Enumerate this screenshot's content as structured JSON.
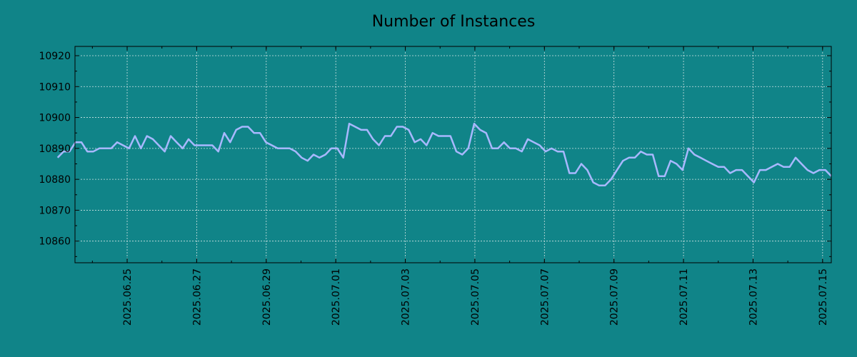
{
  "chart_data": {
    "type": "line",
    "title": "Number of Instances",
    "xlabel": "",
    "ylabel": "",
    "x_start": "2025-06-23",
    "x_end": "2025-07-15",
    "xlim": [
      "2025-06-23 12:00",
      "2025-07-15 06:00"
    ],
    "ylim": [
      10853,
      10923
    ],
    "xticks": [
      "2025.06.25",
      "2025.06.27",
      "2025.06.29",
      "2025.07.01",
      "2025.07.03",
      "2025.07.05",
      "2025.07.07",
      "2025.07.09",
      "2025.07.11",
      "2025.07.13",
      "2025.07.15"
    ],
    "yticks": [
      10860,
      10870,
      10880,
      10890,
      10900,
      10910,
      10920
    ],
    "grid": true,
    "colors": {
      "background": "#108488",
      "line": "#a8b8ff",
      "grid": "#cfe3e3",
      "axis": "#000000"
    },
    "series": [
      {
        "name": "",
        "values": [
          10887,
          10889,
          10889,
          10892,
          10892,
          10889,
          10889,
          10890,
          10890,
          10890,
          10892,
          10891,
          10890,
          10894,
          10890,
          10894,
          10893,
          10891,
          10889,
          10894,
          10892,
          10890,
          10893,
          10891,
          10891,
          10891,
          10891,
          10889,
          10895,
          10892,
          10896,
          10897,
          10897,
          10895,
          10895,
          10892,
          10891,
          10890,
          10890,
          10890,
          10889,
          10887,
          10886,
          10888,
          10887,
          10888,
          10890,
          10890,
          10887,
          10898,
          10897,
          10896,
          10896,
          10893,
          10891,
          10894,
          10894,
          10897,
          10897,
          10896,
          10892,
          10893,
          10891,
          10895,
          10894,
          10894,
          10894,
          10889,
          10888,
          10890,
          10898,
          10896,
          10895,
          10890,
          10890,
          10892,
          10890,
          10890,
          10889,
          10893,
          10892,
          10891,
          10889,
          10890,
          10889,
          10889,
          10882,
          10882,
          10885,
          10883,
          10879,
          10878,
          10878,
          10880,
          10883,
          10886,
          10887,
          10887,
          10889,
          10888,
          10888,
          10881,
          10881,
          10886,
          10885,
          10883,
          10890,
          10888,
          10887,
          10886,
          10885,
          10884,
          10884,
          10882,
          10883,
          10883,
          10881,
          10879,
          10883,
          10883,
          10884,
          10885,
          10884,
          10884,
          10887,
          10885,
          10883,
          10882,
          10883,
          10883,
          10881
        ]
      }
    ]
  }
}
